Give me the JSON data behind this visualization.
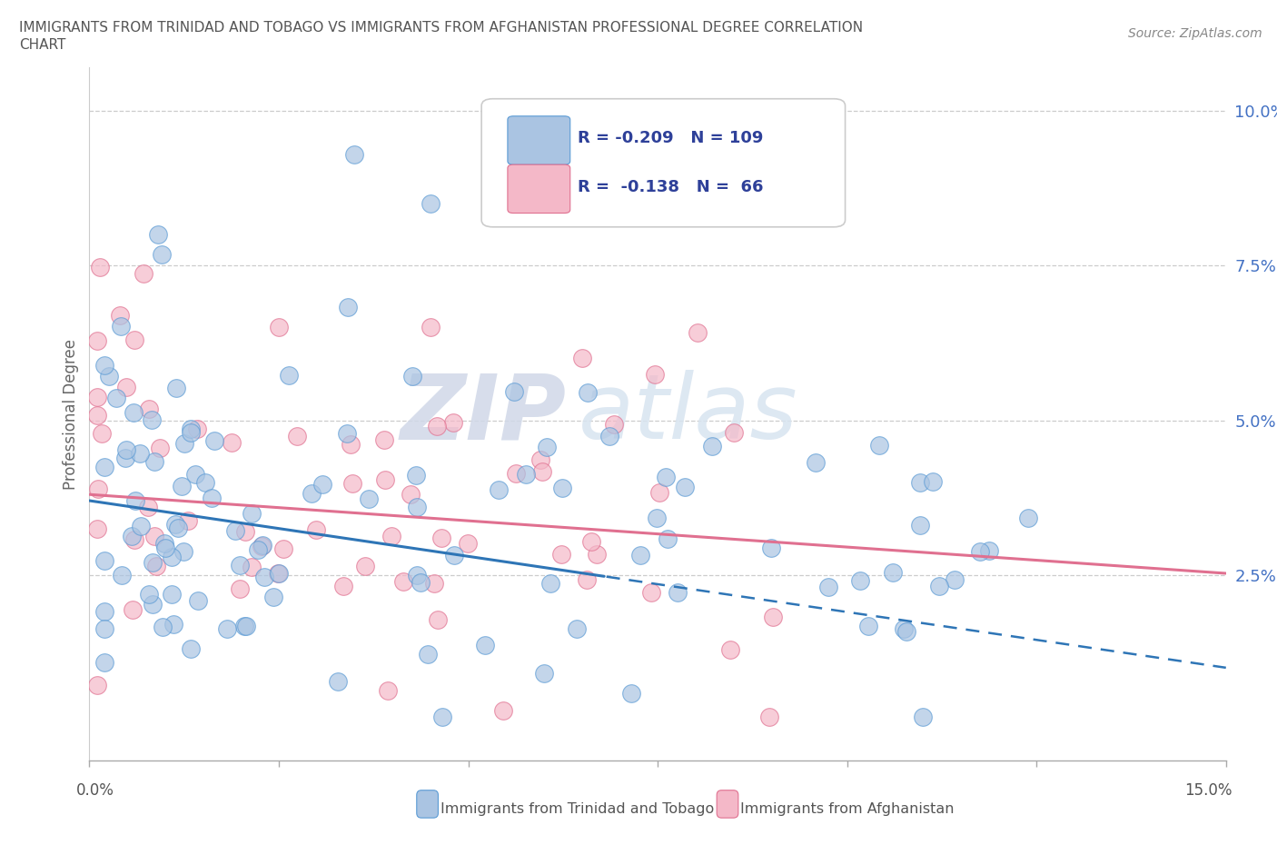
{
  "title_line1": "IMMIGRANTS FROM TRINIDAD AND TOBAGO VS IMMIGRANTS FROM AFGHANISTAN PROFESSIONAL DEGREE CORRELATION",
  "title_line2": "CHART",
  "source": "Source: ZipAtlas.com",
  "ylabel": "Professional Degree",
  "xmin": 0.0,
  "xmax": 0.15,
  "ymin": -0.005,
  "ymax": 0.107,
  "yticks": [
    0.025,
    0.05,
    0.075,
    0.1
  ],
  "ytick_labels": [
    "2.5%",
    "5.0%",
    "7.5%",
    "10.0%"
  ],
  "series1_color": "#aac4e2",
  "series1_edge": "#5b9bd5",
  "series2_color": "#f4b8c8",
  "series2_edge": "#e07090",
  "line1_color": "#2e75b6",
  "line2_color": "#e07090",
  "watermark_zip": "ZIP",
  "watermark_atlas": "atlas",
  "bottom_legend1": "Immigrants from Trinidad and Tobago",
  "bottom_legend2": "Immigrants from Afghanistan"
}
